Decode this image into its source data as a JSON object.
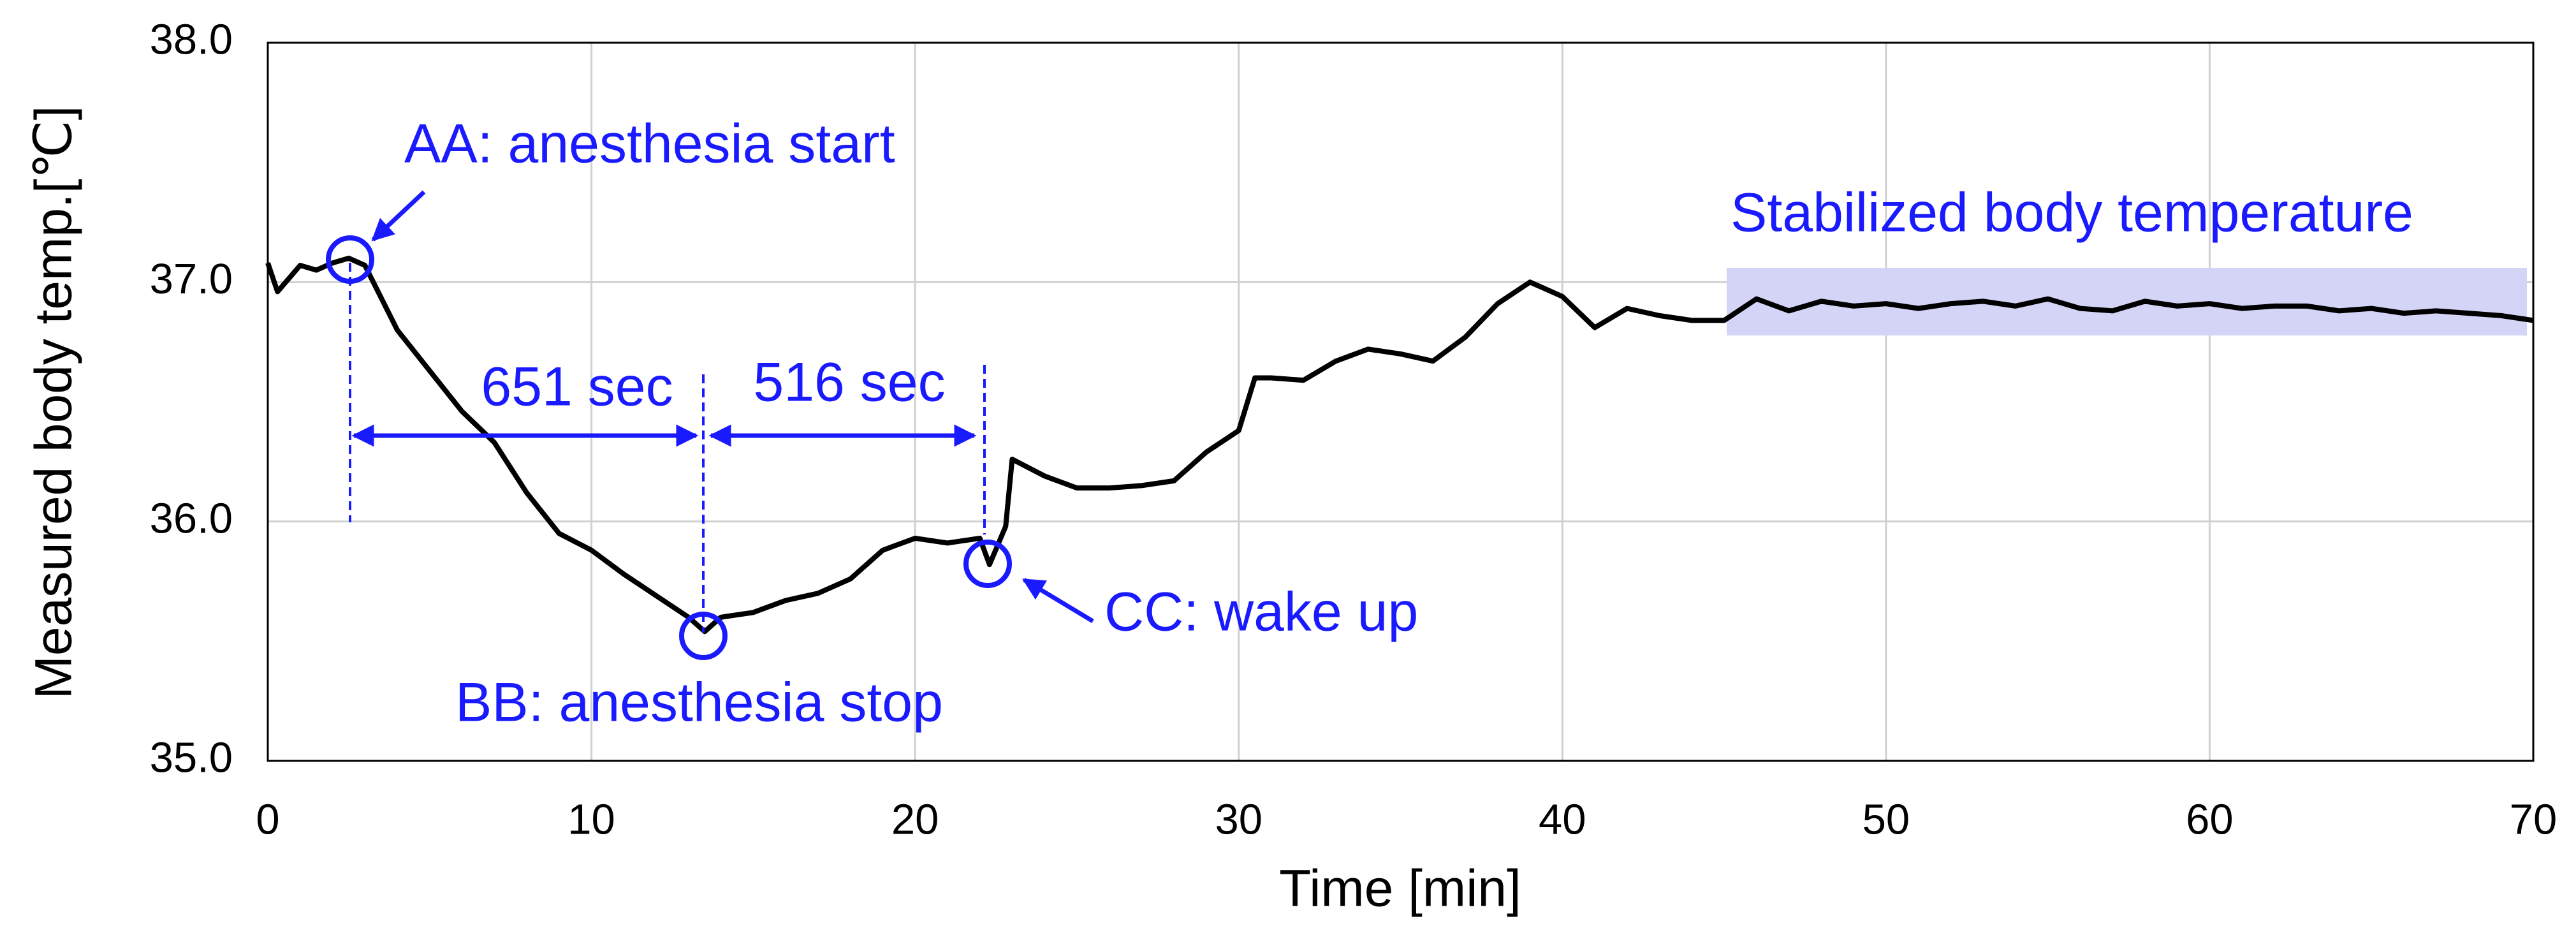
{
  "chart_data": {
    "type": "line",
    "xlabel": "Time [min]",
    "ylabel": "Measured body temp.[℃]",
    "x": [
      0,
      0.3,
      1,
      1.5,
      2,
      2.5,
      3,
      4,
      5,
      6,
      7,
      8,
      9,
      10,
      11,
      12,
      13,
      13.5,
      14,
      15,
      16,
      17,
      18,
      19,
      20,
      21,
      22,
      22.3,
      22.8,
      23,
      24,
      25,
      26,
      27,
      28,
      29,
      30,
      30.5,
      31,
      32,
      33,
      34,
      35,
      36,
      37,
      38,
      39,
      40,
      41,
      42,
      43,
      44,
      45,
      46,
      47,
      48,
      49,
      50,
      51,
      52,
      53,
      54,
      55,
      56,
      57,
      58,
      59,
      60,
      61,
      62,
      63,
      64,
      65,
      66,
      67,
      68,
      69,
      70
    ],
    "values": [
      37.08,
      36.96,
      37.07,
      37.05,
      37.08,
      37.1,
      37.07,
      36.8,
      36.63,
      36.46,
      36.33,
      36.12,
      35.95,
      35.88,
      35.78,
      35.69,
      35.6,
      35.54,
      35.6,
      35.62,
      35.67,
      35.7,
      35.76,
      35.88,
      35.93,
      35.91,
      35.93,
      35.82,
      35.98,
      36.26,
      36.19,
      36.14,
      36.14,
      36.15,
      36.17,
      36.29,
      36.38,
      36.6,
      36.6,
      36.59,
      36.67,
      36.72,
      36.7,
      36.67,
      36.77,
      36.91,
      37.0,
      36.94,
      36.81,
      36.89,
      36.86,
      36.84,
      36.84,
      36.93,
      36.88,
      36.92,
      36.9,
      36.91,
      36.89,
      36.91,
      36.92,
      36.9,
      36.93,
      36.89,
      36.88,
      36.92,
      36.9,
      36.91,
      36.89,
      36.9,
      36.9,
      36.88,
      36.89,
      36.87,
      36.88,
      36.87,
      36.86,
      36.84
    ],
    "color": "#000000",
    "xlim": [
      0,
      70
    ],
    "xticks": [
      0,
      10,
      20,
      30,
      40,
      50,
      60,
      70
    ],
    "ylim": [
      35,
      38
    ],
    "yticks": [
      {
        "value": 35,
        "label": "35.0"
      },
      {
        "value": 36,
        "label": "36.0"
      },
      {
        "value": 37,
        "label": "37.0"
      },
      {
        "value": 38,
        "label": "38.0"
      }
    ],
    "grid": true,
    "annotations": [
      "AA: anesthesia start",
      "651 sec",
      "516 sec",
      "BB: anesthesia stop",
      "CC: wake up",
      "Stabilized body temperature"
    ]
  }
}
